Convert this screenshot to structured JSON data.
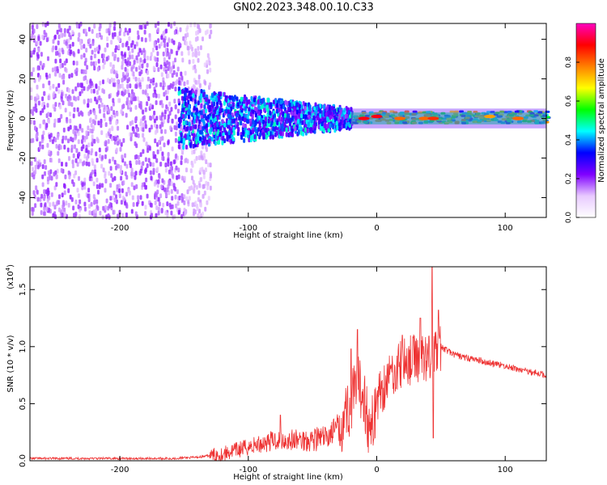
{
  "title": "GN02.2023.348.00.10.C33",
  "chart_data": [
    {
      "type": "heatmap",
      "xlabel": "Height of straight line (km)",
      "ylabel": "Frequency (Hz)",
      "xlim": [
        -270,
        132
      ],
      "ylim": [
        -50,
        48
      ],
      "xticks": [
        -200,
        -100,
        0,
        100
      ],
      "yticks": [
        -40,
        -20,
        0,
        20,
        40
      ],
      "colorbar": {
        "label": "Normalized spectral amplitude",
        "range": [
          0.0,
          1.0
        ],
        "ticks": [
          "0.0",
          "0.2",
          "0.4",
          "0.6",
          "0.8"
        ],
        "colors": [
          "#ffffff",
          "#e8c9ff",
          "#7f00ff",
          "#0000ff",
          "#00ffff",
          "#00ff00",
          "#ffff00",
          "#ff8000",
          "#ff0000",
          "#ff00c0"
        ]
      },
      "regions": [
        {
          "x": [
            -270,
            -150
          ],
          "freq": [
            -50,
            48
          ],
          "amplitude": 0.08,
          "texture": "scattered noise"
        },
        {
          "x": [
            -150,
            -130
          ],
          "freq": [
            -50,
            48
          ],
          "amplitude": 0.04,
          "texture": "faint noise"
        },
        {
          "x": [
            -155,
            -20
          ],
          "freq": [
            -15,
            15
          ],
          "amplitude": 0.25,
          "texture": "narrowing band"
        },
        {
          "x": [
            -20,
            132
          ],
          "freq": [
            -3,
            3
          ],
          "amplitude": 0.45,
          "texture": "narrow band"
        }
      ],
      "hotspots": [
        {
          "x": -10,
          "freq": 0,
          "amplitude": 0.9
        },
        {
          "x": 0,
          "freq": 1,
          "amplitude": 0.9
        },
        {
          "x": 18,
          "freq": 0,
          "amplitude": 0.8
        },
        {
          "x": 37,
          "freq": 0,
          "amplitude": 0.8
        },
        {
          "x": 44,
          "freq": 0,
          "amplitude": 0.85
        },
        {
          "x": 88,
          "freq": 1,
          "amplitude": 0.75
        },
        {
          "x": 110,
          "freq": 0,
          "amplitude": 0.8
        }
      ]
    },
    {
      "type": "line",
      "xlabel": "Height of straight line (km)",
      "ylabel": "SNR (10 * v/v)",
      "multiplier_label": "(x10",
      "multiplier_exp": "4",
      "multiplier_close": ")",
      "xlim": [
        -270,
        132
      ],
      "ylim": [
        0,
        1.7
      ],
      "xticks": [
        -200,
        -100,
        0,
        100
      ],
      "yticks": [
        "0.0",
        "0.5",
        "1.0",
        "1.5"
      ],
      "color": "#ee3333",
      "series": [
        {
          "x": [
            -270,
            -240,
            -200,
            -160,
            -140,
            -120,
            -100,
            -80,
            -60,
            -40,
            -30,
            -20,
            -15,
            -10,
            -5,
            0,
            10,
            20,
            30,
            40,
            44,
            50,
            60,
            70,
            80,
            90,
            100,
            110,
            120,
            132
          ],
          "y": [
            0.02,
            0.02,
            0.02,
            0.02,
            0.03,
            0.06,
            0.12,
            0.18,
            0.18,
            0.2,
            0.3,
            0.5,
            0.65,
            0.6,
            0.2,
            0.55,
            0.75,
            0.85,
            0.9,
            0.92,
            0.95,
            1.0,
            0.93,
            0.9,
            0.88,
            0.85,
            0.83,
            0.8,
            0.78,
            0.75
          ],
          "peaks": [
            {
              "x": -75,
              "y": 0.4
            },
            {
              "x": -20,
              "y": 0.98
            },
            {
              "x": -15,
              "y": 1.15
            },
            {
              "x": 20,
              "y": 1.1
            },
            {
              "x": 34,
              "y": 1.25
            },
            {
              "x": 43,
              "y": 1.7
            },
            {
              "x": 48,
              "y": 1.32
            },
            {
              "x": 44,
              "y": 0.2
            }
          ]
        }
      ]
    }
  ]
}
